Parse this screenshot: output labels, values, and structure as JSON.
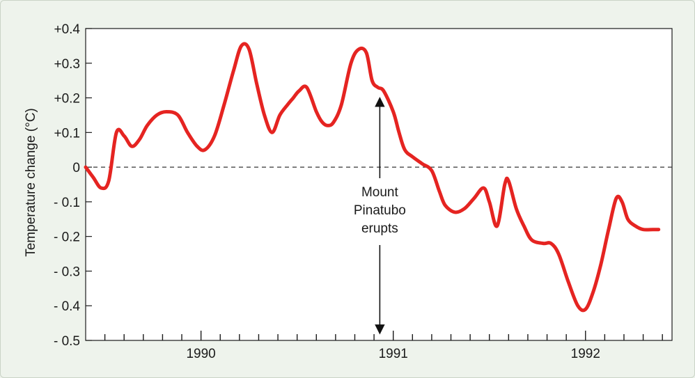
{
  "chart_data": {
    "type": "line",
    "title": "",
    "xlabel": "",
    "ylabel": "Temperature  change  (°C)",
    "x_ticks": [
      "1990",
      "1991",
      "1992"
    ],
    "y_ticks": [
      "+0.4",
      "+0.3",
      "+0.2",
      "+0.1",
      "0",
      "- 0.1",
      "- 0.2",
      "- 0.3",
      "- 0.4",
      "- 0.5"
    ],
    "y_tick_values": [
      0.4,
      0.3,
      0.2,
      0.1,
      0,
      -0.1,
      -0.2,
      -0.3,
      -0.4,
      -0.5
    ],
    "xlim": [
      1989.4,
      1992.45
    ],
    "ylim": [
      -0.5,
      0.4
    ],
    "grid": false,
    "zero_line": "dashed",
    "series": [
      {
        "color": "#e52421",
        "x": [
          1989.4,
          1989.44,
          1989.48,
          1989.52,
          1989.56,
          1989.6,
          1989.64,
          1989.68,
          1989.72,
          1989.77,
          1989.82,
          1989.88,
          1989.93,
          1989.98,
          1990.02,
          1990.07,
          1990.12,
          1990.17,
          1990.21,
          1990.25,
          1990.29,
          1990.33,
          1990.37,
          1990.41,
          1990.45,
          1990.48,
          1990.51,
          1990.55,
          1990.6,
          1990.63,
          1990.66,
          1990.69,
          1990.73,
          1990.78,
          1990.82,
          1990.86,
          1990.89,
          1990.92,
          1990.95,
          1991.0,
          1991.03,
          1991.06,
          1991.1,
          1991.15,
          1991.2,
          1991.24,
          1991.27,
          1991.32,
          1991.37,
          1991.42,
          1991.47,
          1991.5,
          1991.54,
          1991.58,
          1991.6,
          1991.64,
          1991.68,
          1991.72,
          1991.78,
          1991.82,
          1991.86,
          1991.91,
          1991.96,
          1992.0,
          1992.04,
          1992.08,
          1992.12,
          1992.16,
          1992.19,
          1992.22,
          1992.26,
          1992.3,
          1992.35,
          1992.38
        ],
        "values": [
          0.0,
          -0.03,
          -0.06,
          -0.04,
          0.1,
          0.09,
          0.06,
          0.08,
          0.12,
          0.15,
          0.16,
          0.15,
          0.1,
          0.06,
          0.05,
          0.09,
          0.18,
          0.28,
          0.35,
          0.34,
          0.24,
          0.15,
          0.1,
          0.15,
          0.18,
          0.2,
          0.22,
          0.23,
          0.16,
          0.13,
          0.12,
          0.13,
          0.18,
          0.3,
          0.34,
          0.33,
          0.25,
          0.23,
          0.22,
          0.16,
          0.1,
          0.05,
          0.03,
          0.01,
          -0.01,
          -0.07,
          -0.11,
          -0.13,
          -0.12,
          -0.09,
          -0.06,
          -0.1,
          -0.17,
          -0.05,
          -0.04,
          -0.12,
          -0.17,
          -0.21,
          -0.22,
          -0.22,
          -0.25,
          -0.33,
          -0.4,
          -0.41,
          -0.36,
          -0.28,
          -0.18,
          -0.09,
          -0.1,
          -0.15,
          -0.17,
          -0.18,
          -0.18,
          -0.18
        ]
      }
    ],
    "annotation": {
      "lines": [
        "Mount",
        "Pinatubo",
        "erupts"
      ],
      "x": 1990.93,
      "arrow_up_to": 0.2,
      "arrow_down_to": -0.48
    }
  }
}
